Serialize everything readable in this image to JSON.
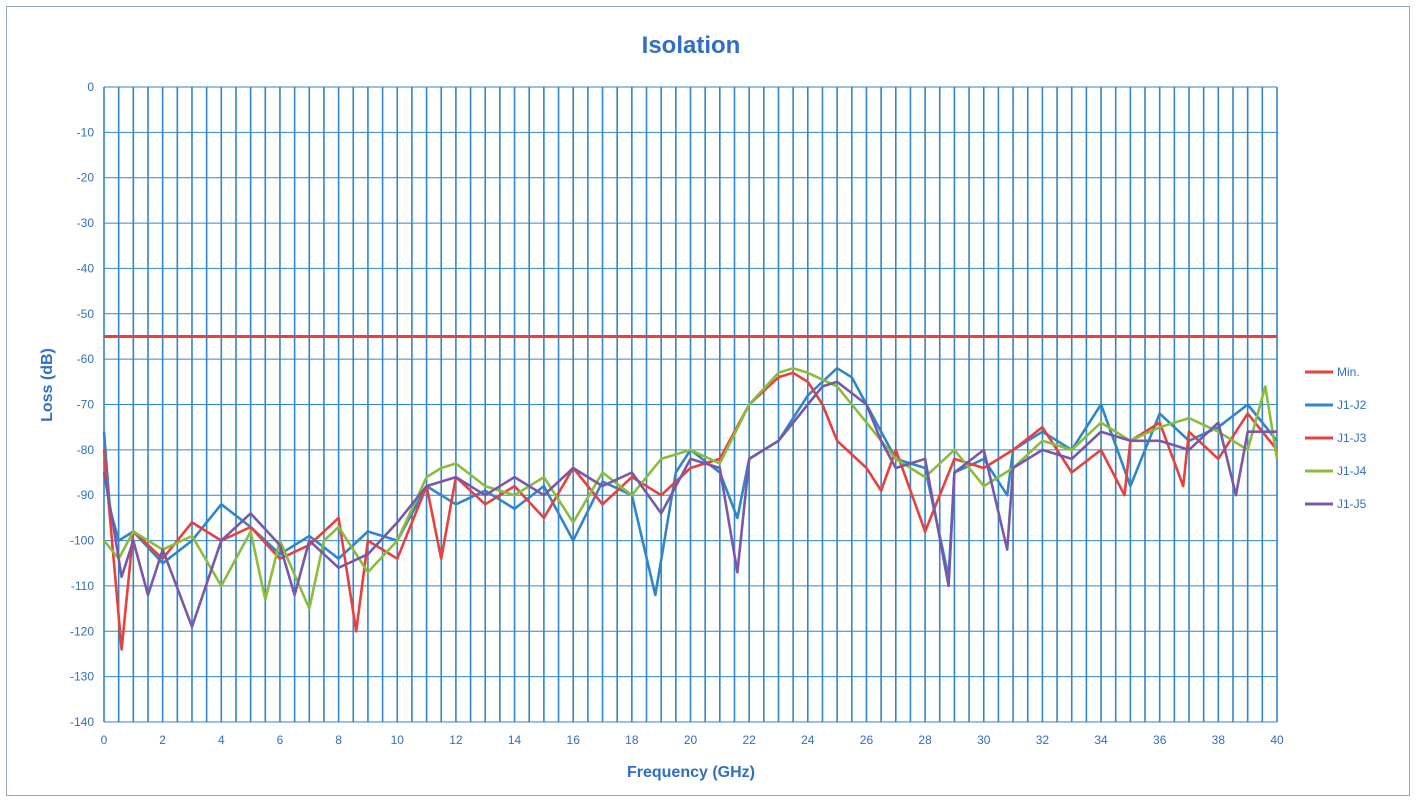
{
  "chart_data": {
    "type": "line",
    "title": "Isolation",
    "xlabel": "Frequency (GHz)",
    "ylabel": "Loss (dB)",
    "xlim": [
      0,
      40
    ],
    "ylim": [
      -140,
      0
    ],
    "xticks": [
      0,
      2,
      4,
      6,
      8,
      10,
      12,
      14,
      16,
      18,
      20,
      22,
      24,
      26,
      28,
      30,
      32,
      34,
      36,
      38,
      40
    ],
    "yticks": [
      0,
      -10,
      -20,
      -30,
      -40,
      -50,
      -60,
      -70,
      -80,
      -90,
      -100,
      -110,
      -120,
      -130,
      -140
    ],
    "grid": true,
    "legend_position": "right",
    "series": [
      {
        "name": "Min.",
        "color": "#e8403c",
        "x": [
          0,
          40
        ],
        "y": [
          -55,
          -55
        ]
      },
      {
        "name": "J1-J2",
        "color": "#2f86c8",
        "x": [
          0,
          0.2,
          0.5,
          1,
          2,
          3,
          4,
          5,
          6,
          7,
          8,
          9,
          10,
          11,
          12,
          13,
          14,
          15,
          16,
          17,
          18,
          18.8,
          19.5,
          20,
          21,
          21.6,
          22,
          23,
          24,
          25,
          25.5,
          26,
          27,
          28,
          28.8,
          29,
          30,
          30.8,
          31,
          32,
          33,
          34,
          35,
          36,
          37,
          38,
          39,
          40
        ],
        "y": [
          -76,
          -93,
          -100,
          -98,
          -105,
          -100,
          -92,
          -97,
          -103,
          -99,
          -104,
          -98,
          -100,
          -88,
          -92,
          -89,
          -93,
          -88,
          -100,
          -87,
          -90,
          -112,
          -85,
          -80,
          -85,
          -95,
          -82,
          -78,
          -68,
          -62,
          -64,
          -70,
          -82,
          -84,
          -108,
          -85,
          -82,
          -90,
          -80,
          -76,
          -80,
          -70,
          -88,
          -72,
          -78,
          -75,
          -70,
          -78
        ]
      },
      {
        "name": "J1-J3",
        "color": "#e8403c",
        "x": [
          0,
          0.3,
          0.6,
          1,
          2,
          3,
          4,
          5,
          6,
          7,
          8,
          8.6,
          9,
          10,
          11,
          11.5,
          12,
          13,
          14,
          15,
          16,
          17,
          18,
          19,
          20,
          21,
          22,
          23,
          23.5,
          24,
          24.5,
          25,
          26,
          26.5,
          27,
          28,
          29,
          30,
          31,
          32,
          33,
          34,
          34.8,
          35,
          36,
          36.8,
          37,
          38,
          39,
          40
        ],
        "y": [
          -80,
          -102,
          -124,
          -98,
          -104,
          -96,
          -100,
          -97,
          -104,
          -101,
          -95,
          -120,
          -100,
          -104,
          -88,
          -104,
          -86,
          -92,
          -88,
          -95,
          -84,
          -92,
          -86,
          -90,
          -84,
          -82,
          -70,
          -64,
          -63,
          -65,
          -70,
          -78,
          -84,
          -89,
          -80,
          -98,
          -82,
          -84,
          -80,
          -75,
          -85,
          -80,
          -90,
          -78,
          -74,
          -88,
          -76,
          -82,
          -72,
          -80
        ]
      },
      {
        "name": "J1-J4",
        "color": "#8cbc3c",
        "x": [
          0,
          0.5,
          1,
          2,
          3,
          4,
          5,
          5.5,
          6,
          7,
          7.5,
          8,
          9,
          10,
          11,
          11.5,
          12,
          13,
          14,
          15,
          16,
          17,
          18,
          19,
          20,
          21,
          22,
          23,
          23.5,
          24,
          25,
          26,
          27,
          28,
          29,
          30,
          31,
          32,
          33,
          34,
          35,
          36,
          37,
          38,
          39,
          39.6,
          40
        ],
        "y": [
          -100,
          -104,
          -98,
          -102,
          -99,
          -110,
          -98,
          -113,
          -100,
          -115,
          -100,
          -97,
          -107,
          -100,
          -86,
          -84,
          -83,
          -88,
          -90,
          -86,
          -96,
          -85,
          -90,
          -82,
          -80,
          -83,
          -70,
          -63,
          -62,
          -63,
          -66,
          -74,
          -82,
          -86,
          -80,
          -88,
          -84,
          -78,
          -80,
          -74,
          -78,
          -75,
          -73,
          -76,
          -80,
          -66,
          -82
        ]
      },
      {
        "name": "J1-J5",
        "color": "#7a58a8",
        "x": [
          0,
          0.3,
          0.6,
          1,
          1.5,
          2,
          3,
          4,
          5,
          6,
          6.5,
          7,
          8,
          9,
          10,
          11,
          12,
          13,
          14,
          15,
          16,
          17,
          18,
          19,
          20,
          21,
          21.6,
          22,
          23,
          24,
          24.5,
          25,
          26,
          26.5,
          27,
          28,
          28.8,
          29,
          30,
          30.8,
          31,
          32,
          33,
          34,
          35,
          36,
          37,
          38,
          38.6,
          39,
          40
        ],
        "y": [
          -85,
          -96,
          -108,
          -100,
          -112,
          -102,
          -119,
          -100,
          -94,
          -101,
          -112,
          -100,
          -106,
          -103,
          -96,
          -88,
          -86,
          -90,
          -86,
          -90,
          -84,
          -88,
          -85,
          -94,
          -82,
          -84,
          -107,
          -82,
          -78,
          -70,
          -66,
          -65,
          -70,
          -78,
          -84,
          -82,
          -110,
          -85,
          -80,
          -102,
          -84,
          -80,
          -82,
          -76,
          -78,
          -78,
          -80,
          -74,
          -90,
          -76,
          -76
        ]
      }
    ]
  }
}
